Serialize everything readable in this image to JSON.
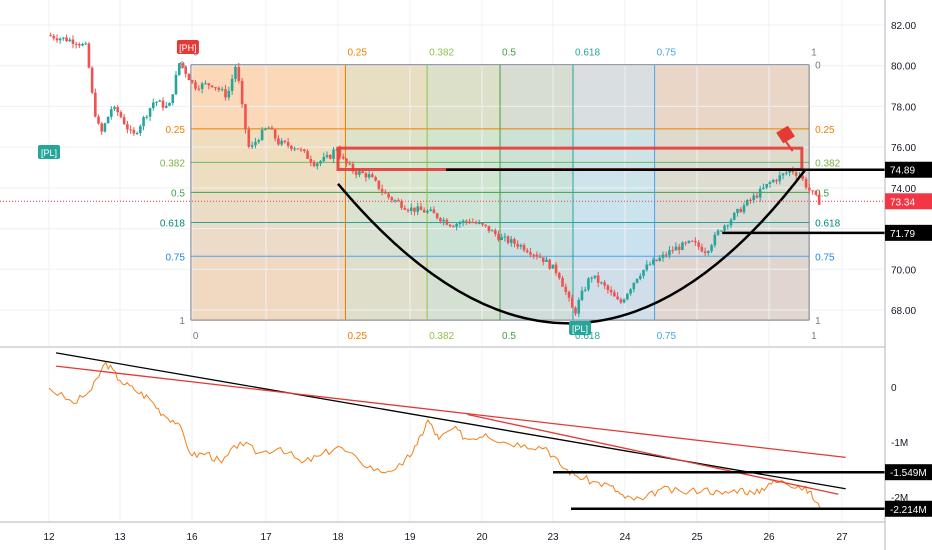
{
  "chart_data": [
    {
      "type": "candlestick",
      "title": "",
      "x_ticks": [
        "12",
        "13",
        "16",
        "17",
        "18",
        "19",
        "20",
        "23",
        "24",
        "25",
        "26",
        "27"
      ],
      "y_ticks": [
        "82.00",
        "80.00",
        "78.00",
        "76.00",
        "74.00",
        "72.00",
        "70.00",
        "68.00"
      ],
      "ylim": [
        66.8,
        83.3
      ],
      "current_price": "73.34",
      "price_levels": [
        {
          "label": "74.89",
          "value": 74.89
        },
        {
          "label": "71.79",
          "value": 71.79
        }
      ],
      "pivot_labels": {
        "high": "[PH]",
        "low": "[PL]"
      },
      "fib_time_zones": {
        "ratios": [
          "0",
          "0.25",
          "0.382",
          "0.5",
          "0.618",
          "0.75",
          "1"
        ],
        "x_day_start": 1.985,
        "x_day_end": 10.55
      },
      "fib_retracement": {
        "high": 80.05,
        "low": 67.5,
        "levels": [
          {
            "ratio": 0,
            "label": "0",
            "price": 80.05
          },
          {
            "ratio": 0.25,
            "label": "0.25",
            "price": 76.9
          },
          {
            "ratio": 0.382,
            "label": "0.382",
            "price": 75.25
          },
          {
            "ratio": 0.5,
            "label": "0.5",
            "price": 73.78
          },
          {
            "ratio": 0.618,
            "label": "0.618",
            "price": 72.3
          },
          {
            "ratio": 0.75,
            "label": "0.75",
            "price": 70.64
          },
          {
            "ratio": 1,
            "label": "1",
            "price": 67.5
          }
        ]
      },
      "cup_pattern": {
        "start": [
          4.0,
          74.2
        ],
        "bottom": [
          7.3,
          67.35
        ],
        "end": [
          10.5,
          74.9
        ]
      },
      "price_path": [
        [
          0.0,
          81.5
        ],
        [
          0.4,
          81.2
        ],
        [
          0.55,
          80.9
        ],
        [
          0.65,
          78.0
        ],
        [
          0.75,
          76.6
        ],
        [
          0.9,
          77.9
        ],
        [
          1.0,
          77.7
        ],
        [
          1.2,
          76.5
        ],
        [
          1.5,
          78.3
        ],
        [
          1.7,
          77.9
        ],
        [
          1.85,
          80.2
        ],
        [
          2.05,
          79.0
        ],
        [
          2.3,
          79.1
        ],
        [
          2.5,
          78.5
        ],
        [
          2.62,
          80.1
        ],
        [
          2.72,
          77.4
        ],
        [
          2.8,
          75.8
        ],
        [
          2.9,
          76.4
        ],
        [
          3.05,
          77.0
        ],
        [
          3.2,
          76.2
        ],
        [
          3.45,
          76.0
        ],
        [
          3.7,
          75.2
        ],
        [
          3.9,
          75.5
        ],
        [
          4.0,
          76.0
        ],
        [
          4.1,
          75.3
        ],
        [
          4.25,
          74.8
        ],
        [
          4.45,
          74.6
        ],
        [
          4.7,
          73.6
        ],
        [
          5.0,
          73.0
        ],
        [
          5.3,
          72.8
        ],
        [
          5.6,
          72.2
        ],
        [
          5.85,
          72.4
        ],
        [
          6.1,
          72.0
        ],
        [
          6.3,
          71.5
        ],
        [
          6.55,
          71.2
        ],
        [
          6.85,
          70.6
        ],
        [
          7.1,
          69.8
        ],
        [
          7.25,
          68.4
        ],
        [
          7.32,
          67.8
        ],
        [
          7.4,
          68.6
        ],
        [
          7.55,
          69.7
        ],
        [
          7.75,
          69.1
        ],
        [
          7.95,
          68.3
        ],
        [
          8.2,
          69.7
        ],
        [
          8.35,
          70.2
        ],
        [
          8.5,
          70.5
        ],
        [
          8.7,
          71.0
        ],
        [
          8.95,
          71.3
        ],
        [
          9.15,
          70.9
        ],
        [
          9.35,
          72.0
        ],
        [
          9.5,
          72.5
        ],
        [
          9.7,
          73.2
        ],
        [
          9.9,
          73.8
        ],
        [
          10.05,
          74.3
        ],
        [
          10.2,
          74.6
        ],
        [
          10.32,
          74.9
        ],
        [
          10.45,
          74.6
        ],
        [
          10.55,
          74.0
        ],
        [
          10.7,
          73.34
        ]
      ]
    },
    {
      "type": "line",
      "title": "",
      "x_ticks": [
        "12",
        "13",
        "16",
        "17",
        "18",
        "19",
        "20",
        "23",
        "24",
        "25",
        "26",
        "27"
      ],
      "y_ticks": [
        "0",
        "-1M",
        "-2M"
      ],
      "ylim": [
        -2.42,
        0.52
      ],
      "series": [
        {
          "values": [
            [
              0.0,
              -0.02
            ],
            [
              0.35,
              -0.3
            ],
            [
              0.6,
              -0.05
            ],
            [
              0.8,
              0.45
            ],
            [
              1.0,
              0.12
            ],
            [
              1.2,
              -0.05
            ],
            [
              1.4,
              -0.2
            ],
            [
              1.6,
              -0.5
            ],
            [
              1.8,
              -0.65
            ],
            [
              2.0,
              -1.25
            ],
            [
              2.2,
              -1.2
            ],
            [
              2.4,
              -1.38
            ],
            [
              2.65,
              -1.0
            ],
            [
              2.9,
              -1.2
            ],
            [
              3.2,
              -1.1
            ],
            [
              3.5,
              -1.38
            ],
            [
              3.75,
              -1.25
            ],
            [
              4.0,
              -1.08
            ],
            [
              4.3,
              -1.35
            ],
            [
              4.6,
              -1.55
            ],
            [
              4.9,
              -1.42
            ],
            [
              5.1,
              -1.05
            ],
            [
              5.25,
              -0.6
            ],
            [
              5.4,
              -0.95
            ],
            [
              5.6,
              -0.75
            ],
            [
              5.8,
              -0.95
            ],
            [
              6.05,
              -0.85
            ],
            [
              6.3,
              -1.0
            ],
            [
              6.6,
              -1.05
            ],
            [
              6.9,
              -1.1
            ],
            [
              7.1,
              -1.42
            ],
            [
              7.3,
              -1.6
            ],
            [
              7.55,
              -1.72
            ],
            [
              7.8,
              -1.8
            ],
            [
              8.0,
              -2.02
            ],
            [
              8.25,
              -2.05
            ],
            [
              8.5,
              -1.85
            ],
            [
              8.8,
              -1.92
            ],
            [
              9.1,
              -1.85
            ],
            [
              9.35,
              -1.95
            ],
            [
              9.6,
              -1.85
            ],
            [
              9.8,
              -1.95
            ],
            [
              10.0,
              -1.75
            ],
            [
              10.2,
              -1.72
            ],
            [
              10.4,
              -1.8
            ],
            [
              10.55,
              -1.9
            ],
            [
              10.7,
              -2.214
            ]
          ]
        }
      ],
      "value_labels": [
        {
          "label": "-1.549M",
          "value": -1.549
        },
        {
          "label": "-2.214M",
          "value": -2.214
        }
      ],
      "trendlines": [
        {
          "color": "#000000",
          "from": [
            0.1,
            0.62
          ],
          "to": [
            11.05,
            -1.85
          ]
        },
        {
          "color": "#e53935",
          "from": [
            0.1,
            0.38
          ],
          "to": [
            11.05,
            -1.28
          ]
        },
        {
          "color": "#e53935",
          "from": [
            5.8,
            -0.5
          ],
          "to": [
            10.95,
            -1.95
          ]
        }
      ]
    }
  ],
  "colors": {
    "candle_up": "#26a69a",
    "candle_down": "#ef5350",
    "cup": "#000000",
    "indicator_line": "#f57f17",
    "price_marker": "#f23645",
    "pivot_high": "#e53935",
    "pivot_low": "#26a69a"
  }
}
